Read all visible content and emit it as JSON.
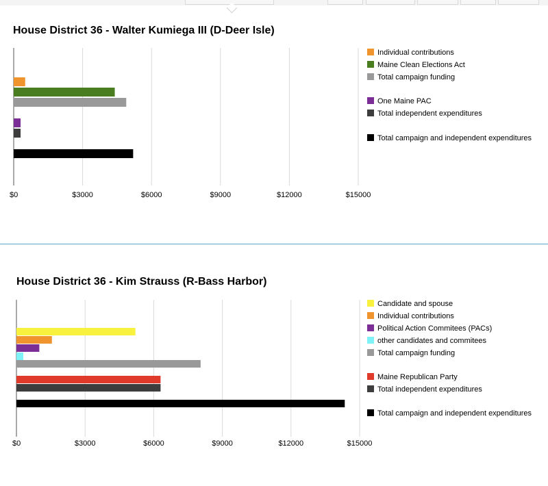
{
  "chart_data": [
    {
      "type": "bar",
      "orientation": "horizontal",
      "title": "House District 36 - Walter Kumiega III (D-Deer Isle)",
      "xlabel": "",
      "ylabel": "",
      "xlim": [
        0,
        15000
      ],
      "xticks": [
        "$0",
        "$3000",
        "$6000",
        "$9000",
        "$12000",
        "$15000"
      ],
      "grid": true,
      "legend_position": "right",
      "series": [
        {
          "name": "Individual contributions",
          "value": 500,
          "color": "#f0952e",
          "group": 0
        },
        {
          "name": "Maine Clean Elections Act",
          "value": 4400,
          "color": "#4a7d20",
          "group": 0
        },
        {
          "name": "Total campaign funding",
          "value": 4900,
          "color": "#999999",
          "group": 0
        },
        {
          "name": "One Maine PAC",
          "value": 300,
          "color": "#7b2f96",
          "group": 1
        },
        {
          "name": "Total independent expenditures",
          "value": 300,
          "color": "#3d3d3d",
          "group": 1
        },
        {
          "name": "Total campaign and independent expenditures",
          "value": 5200,
          "color": "#000000",
          "group": 2
        }
      ]
    },
    {
      "type": "bar",
      "orientation": "horizontal",
      "title": "House District 36 - Kim Strauss (R-Bass Harbor)",
      "xlabel": "",
      "ylabel": "",
      "xlim": [
        0,
        15000
      ],
      "xticks": [
        "$0",
        "$3000",
        "$6000",
        "$9000",
        "$12000",
        "$15000"
      ],
      "grid": true,
      "legend_position": "right",
      "series": [
        {
          "name": "Candidate and spouse",
          "value": 5200,
          "color": "#f8f13e",
          "group": 0
        },
        {
          "name": "Individual contributions",
          "value": 1550,
          "color": "#f0952e",
          "group": 0
        },
        {
          "name": "Political Action Commitees (PACs)",
          "value": 1000,
          "color": "#7b2f96",
          "group": 0
        },
        {
          "name": "other candidates and commitees",
          "value": 300,
          "color": "#7ff2f8",
          "group": 0
        },
        {
          "name": "Total campaign funding",
          "value": 8050,
          "color": "#999999",
          "group": 0
        },
        {
          "name": "Maine Republican Party",
          "value": 6300,
          "color": "#e03a2a",
          "group": 1
        },
        {
          "name": "Total independent expenditures",
          "value": 6300,
          "color": "#3d3d3d",
          "group": 1
        },
        {
          "name": "Total campaign and independent expenditures",
          "value": 14350,
          "color": "#000000",
          "group": 2
        }
      ]
    }
  ]
}
